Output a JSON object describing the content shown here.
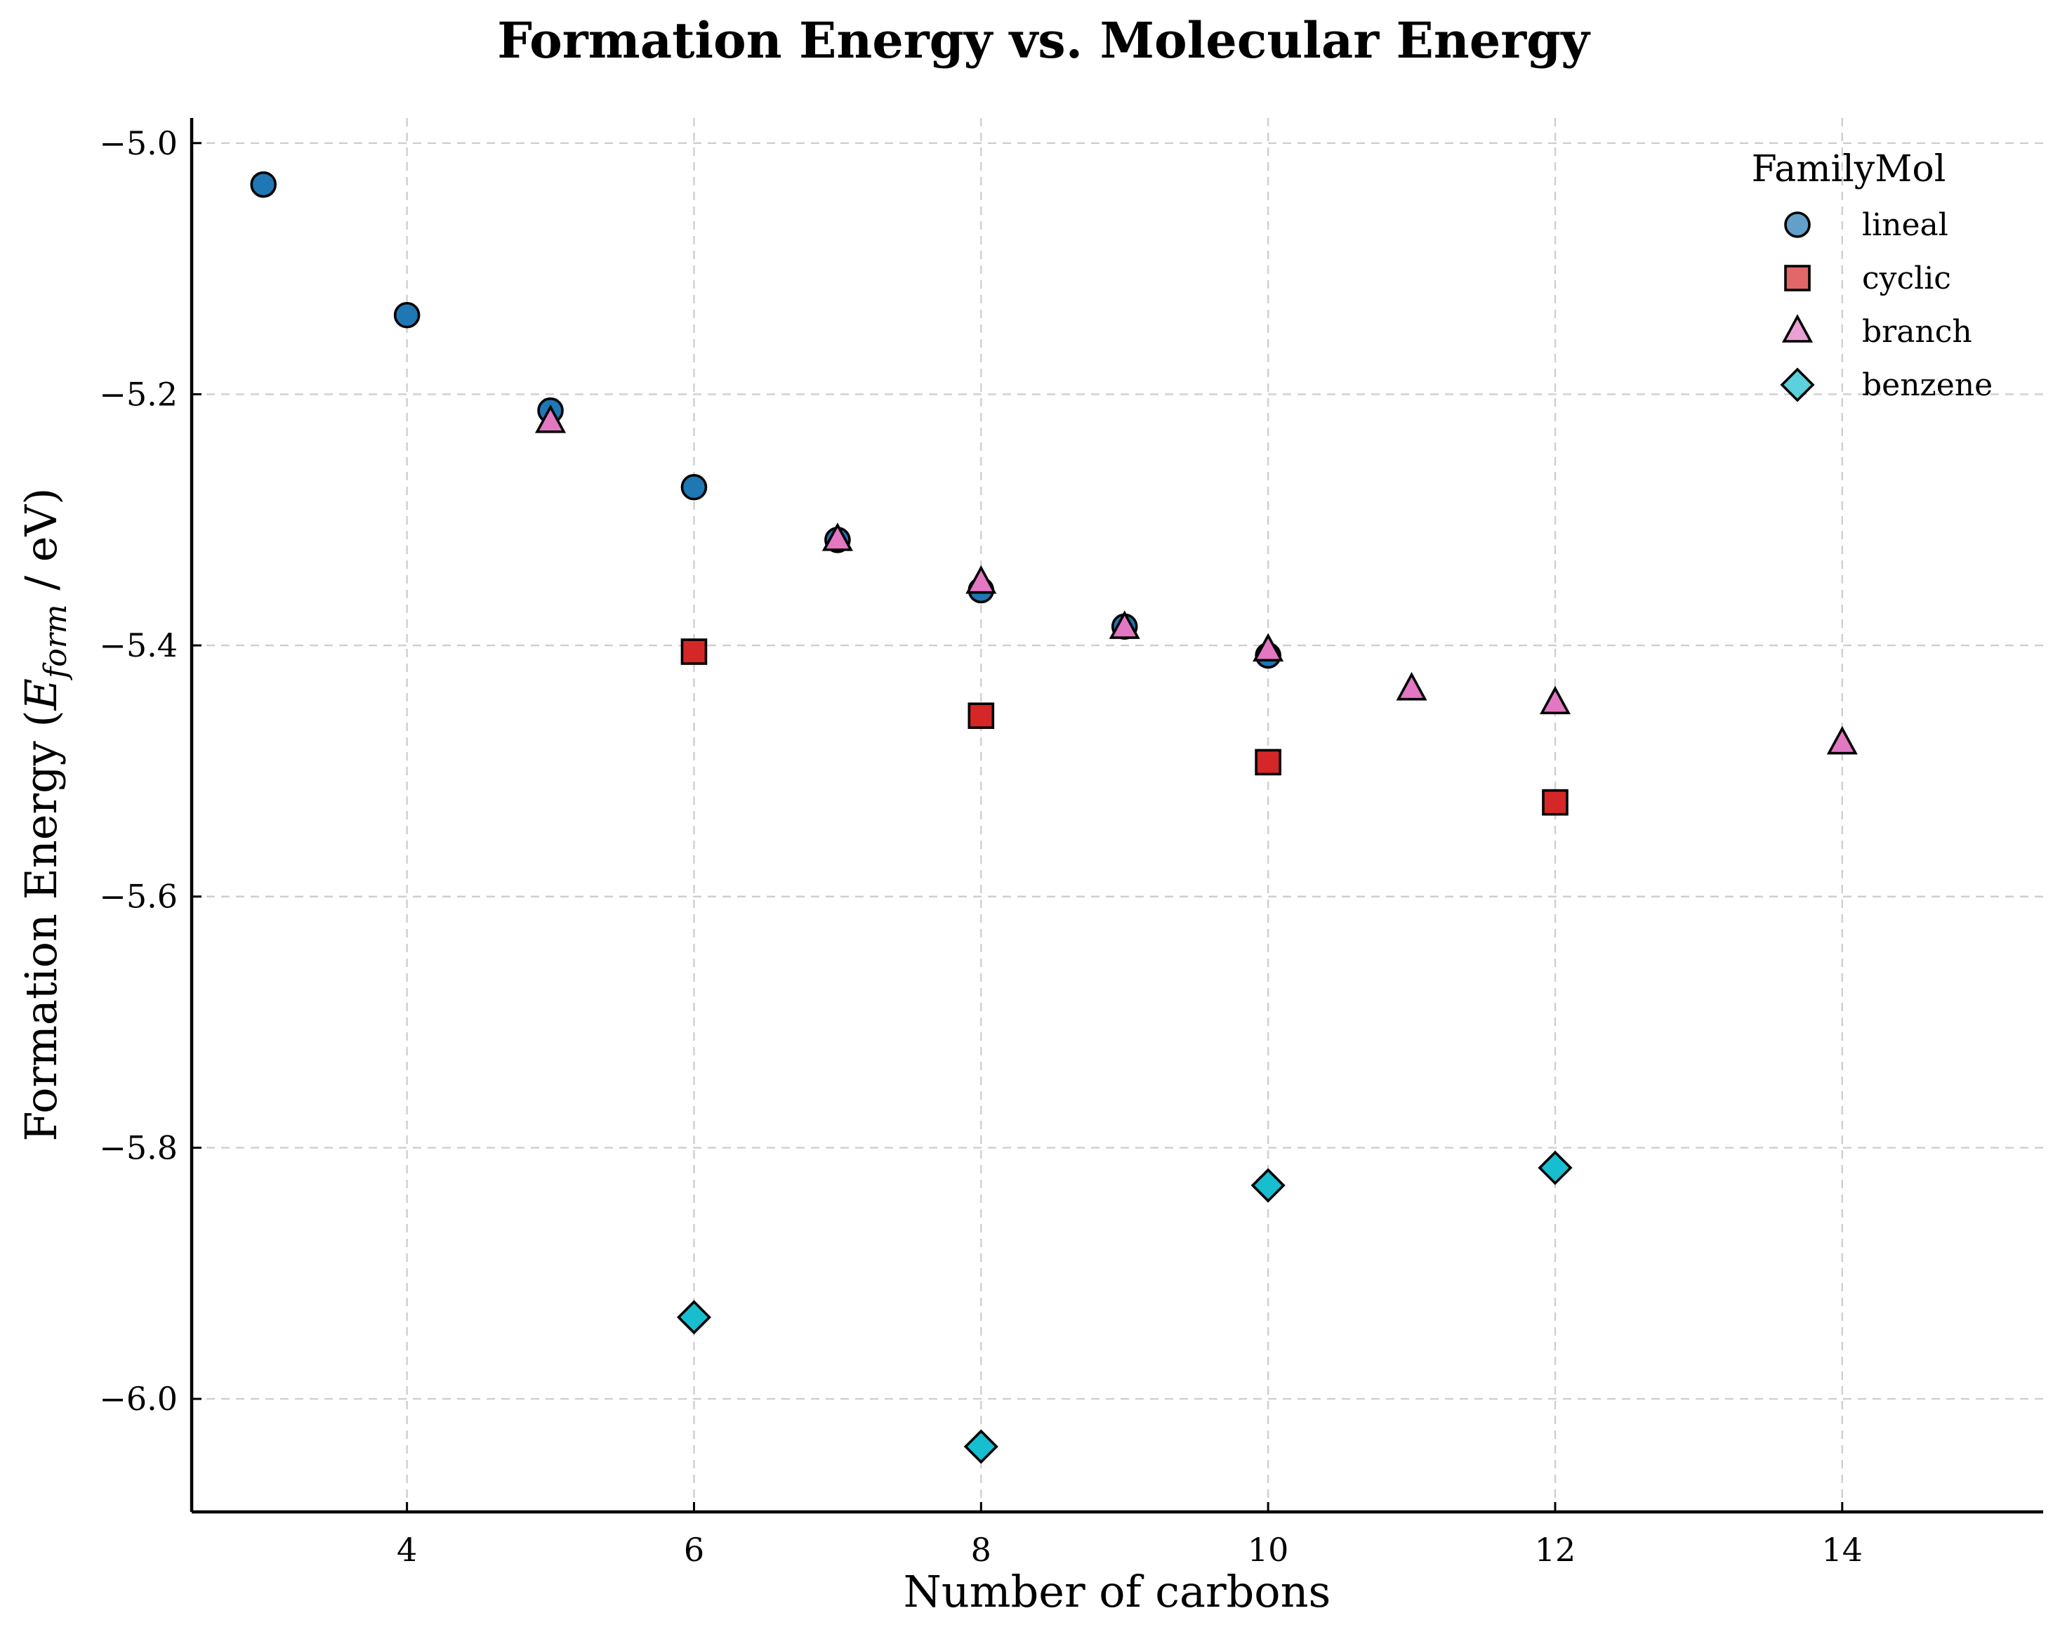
{
  "chart_data": {
    "type": "scatter",
    "title": "Formation Energy vs. Molecular Energy",
    "xlabel": "Number of carbons",
    "ylabel": {
      "prefix": "Formation Energy (",
      "symbol": "E",
      "subscript": "form",
      "suffix": " / eV)"
    },
    "xlim": [
      2.5,
      15.4
    ],
    "ylim": [
      -6.09,
      -4.98
    ],
    "xticks": [
      4,
      6,
      8,
      10,
      12,
      14
    ],
    "xtick_labels": [
      "4",
      "6",
      "8",
      "10",
      "12",
      "14"
    ],
    "yticks": [
      -5.0,
      -5.2,
      -5.4,
      -5.6,
      -5.8,
      -6.0
    ],
    "ytick_labels": [
      "−5.0",
      "−5.2",
      "−5.4",
      "−5.6",
      "−5.8",
      "−6.0"
    ],
    "grid": true,
    "legend": {
      "title": "FamilyMol",
      "position": "top-right"
    },
    "series": [
      {
        "name": "lineal",
        "marker": "circle",
        "color": "#1f77b4",
        "x": [
          3,
          4,
          5,
          6,
          7,
          8,
          9,
          10
        ],
        "y": [
          -5.033,
          -5.137,
          -5.213,
          -5.274,
          -5.316,
          -5.356,
          -5.385,
          -5.408
        ]
      },
      {
        "name": "cyclic",
        "marker": "square",
        "color": "#d62728",
        "x": [
          6,
          8,
          10,
          12
        ],
        "y": [
          -5.405,
          -5.456,
          -5.493,
          -5.525
        ]
      },
      {
        "name": "branch",
        "marker": "triangle",
        "color": "#e377c2",
        "x": [
          5,
          7,
          8,
          9,
          10,
          11,
          12,
          14
        ],
        "y": [
          -5.222,
          -5.316,
          -5.35,
          -5.386,
          -5.404,
          -5.435,
          -5.446,
          -5.478
        ]
      },
      {
        "name": "benzene",
        "marker": "diamond",
        "color": "#17becf",
        "x": [
          6,
          8,
          10,
          12
        ],
        "y": [
          -5.935,
          -6.038,
          -5.83,
          -5.816
        ]
      }
    ]
  }
}
